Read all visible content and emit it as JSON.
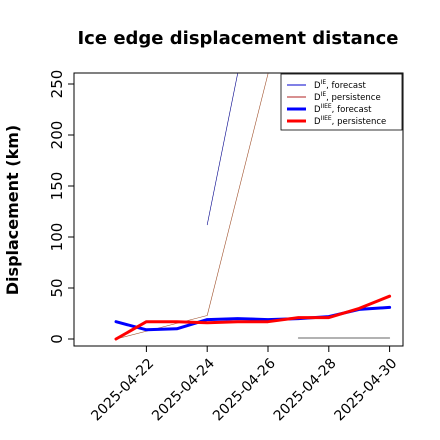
{
  "chart_data": {
    "type": "line",
    "title": "Ice edge displacement distance",
    "ylabel": "Displacement (km)",
    "xlabel": "",
    "ylim": [
      0,
      260
    ],
    "yticks": [
      0,
      50,
      100,
      150,
      200,
      250
    ],
    "xlim": [
      "2025-04-20",
      "2025-04-30"
    ],
    "xticks": [
      {
        "date": "2025-04-22",
        "label": "2025-04-22",
        "color": "#228b22"
      },
      {
        "date": "2025-04-24",
        "label": "2025-04-24",
        "color": "#000000"
      },
      {
        "date": "2025-04-26",
        "label": "2025-04-26",
        "color": "#000000"
      },
      {
        "date": "2025-04-28",
        "label": "2025-04-28",
        "color": "#000000"
      },
      {
        "date": "2025-04-30",
        "label": "2025-04-30",
        "color": "#000000"
      }
    ],
    "legend_position": "top-right",
    "legend": [
      {
        "label": "D",
        "sup": "IE",
        "suffix": ", forecast",
        "color": "#0000cd",
        "width": 1
      },
      {
        "label": "D",
        "sup": "IE",
        "suffix": ", persistence",
        "color": "#b22222",
        "width": 1
      },
      {
        "label": "D",
        "sup": "IIEE",
        "suffix": ", forecast",
        "color": "#0000ff",
        "width": 3
      },
      {
        "label": "D",
        "sup": "IIEE",
        "suffix": ", persistence",
        "color": "#ff0000",
        "width": 3
      }
    ],
    "series": [
      {
        "color": "#00008b",
        "width": 0.6,
        "points": [
          {
            "x": "2025-04-24",
            "y": 112
          },
          {
            "x": "2025-04-25",
            "y": 260
          }
        ]
      },
      {
        "color": "#a0522d",
        "width": 0.6,
        "points": [
          {
            "x": "2025-04-21",
            "y": 0
          },
          {
            "x": "2025-04-24",
            "y": 23
          },
          {
            "x": "2025-04-26",
            "y": 260
          }
        ]
      },
      {
        "color": "#000000",
        "width": 1,
        "opacity": 0.6,
        "points": [
          {
            "x": "2025-04-27",
            "y": 1
          },
          {
            "x": "2025-04-30",
            "y": 1
          }
        ]
      },
      {
        "color": "#0000ff",
        "width": 3,
        "points": [
          {
            "x": "2025-04-21",
            "y": 17
          },
          {
            "x": "2025-04-22",
            "y": 9
          },
          {
            "x": "2025-04-23",
            "y": 10
          },
          {
            "x": "2025-04-24",
            "y": 19
          },
          {
            "x": "2025-04-25",
            "y": 20
          },
          {
            "x": "2025-04-26",
            "y": 19
          },
          {
            "x": "2025-04-27",
            "y": 20
          },
          {
            "x": "2025-04-28",
            "y": 22
          },
          {
            "x": "2025-04-29",
            "y": 29
          },
          {
            "x": "2025-04-30",
            "y": 31
          }
        ]
      },
      {
        "color": "#ff0000",
        "width": 3,
        "points": [
          {
            "x": "2025-04-21",
            "y": 0
          },
          {
            "x": "2025-04-22",
            "y": 17
          },
          {
            "x": "2025-04-23",
            "y": 17
          },
          {
            "x": "2025-04-24",
            "y": 16
          },
          {
            "x": "2025-04-25",
            "y": 17
          },
          {
            "x": "2025-04-26",
            "y": 17
          },
          {
            "x": "2025-04-27",
            "y": 21
          },
          {
            "x": "2025-04-28",
            "y": 21
          },
          {
            "x": "2025-04-29",
            "y": 30
          },
          {
            "x": "2025-04-30",
            "y": 42
          }
        ]
      }
    ]
  }
}
